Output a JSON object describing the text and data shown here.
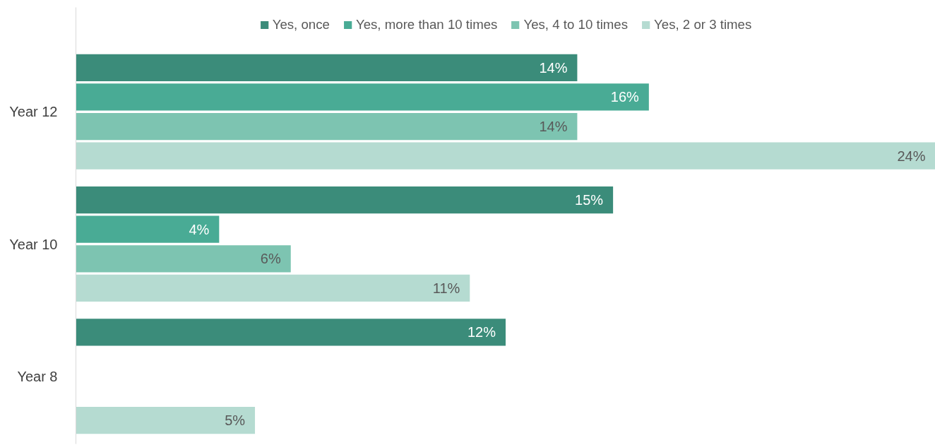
{
  "chart_data": {
    "type": "bar",
    "orientation": "horizontal",
    "categories": [
      "Year 12",
      "Year 10",
      "Year 8"
    ],
    "series": [
      {
        "name": "Yes, once",
        "color": "#3b8c7a",
        "values": [
          14,
          15,
          12
        ],
        "value_labels": [
          "14%",
          "15%",
          "12%"
        ]
      },
      {
        "name": "Yes, more than 10 times",
        "color": "#49ab95",
        "values": [
          16,
          4,
          null
        ],
        "value_labels": [
          "16%",
          "4%",
          null
        ]
      },
      {
        "name": "Yes, 4 to 10 times",
        "color": "#7dc4b1",
        "values": [
          14,
          6,
          null
        ],
        "value_labels": [
          "14%",
          "6%",
          null
        ]
      },
      {
        "name": "Yes, 2 or 3 times",
        "color": "#b5dbd1",
        "values": [
          24,
          11,
          5
        ],
        "value_labels": [
          "24%",
          "11%",
          "5%"
        ]
      }
    ],
    "legend": "top",
    "grid": false,
    "tick_labels": "y"
  }
}
